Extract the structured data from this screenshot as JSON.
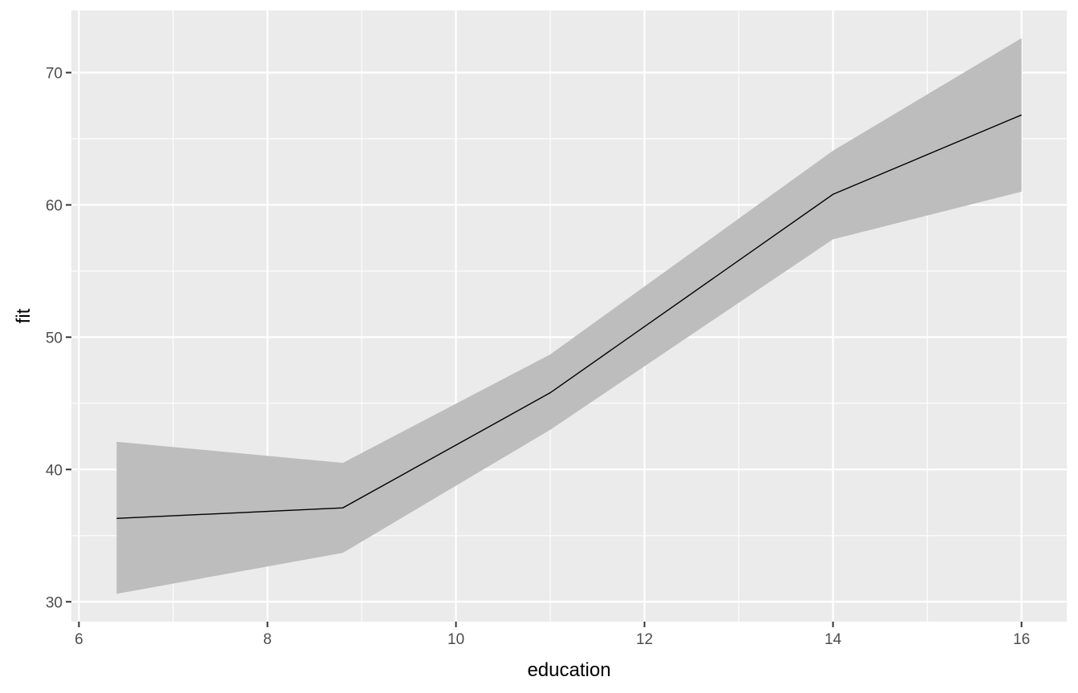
{
  "chart_data": {
    "type": "area",
    "title": "",
    "xlabel": "education",
    "ylabel": "fit",
    "xlim": [
      6.4,
      16
    ],
    "ylim": [
      30.6,
      72.6
    ],
    "x_ticks": [
      6,
      8,
      10,
      12,
      14,
      16
    ],
    "x_tick_labels": [
      "6",
      "8",
      "10",
      "12",
      "14",
      "16"
    ],
    "y_ticks": [
      30,
      40,
      50,
      60,
      70
    ],
    "y_tick_labels": [
      "30",
      "40",
      "50",
      "60",
      "70"
    ],
    "grid": true,
    "legend": "none",
    "x": [
      6.4,
      8.8,
      11,
      14,
      16
    ],
    "series": [
      {
        "name": "",
        "values": [
          36.3,
          37.1,
          45.8,
          60.8,
          66.8
        ],
        "lower": [
          30.6,
          33.7,
          43.0,
          57.4,
          61.0
        ],
        "upper": [
          42.1,
          40.5,
          48.7,
          64.1,
          72.6
        ],
        "line_color": "#000000",
        "band_color": "#bdbdbd"
      }
    ],
    "panel_color": "#ebebeb",
    "grid_color": "#ffffff"
  }
}
